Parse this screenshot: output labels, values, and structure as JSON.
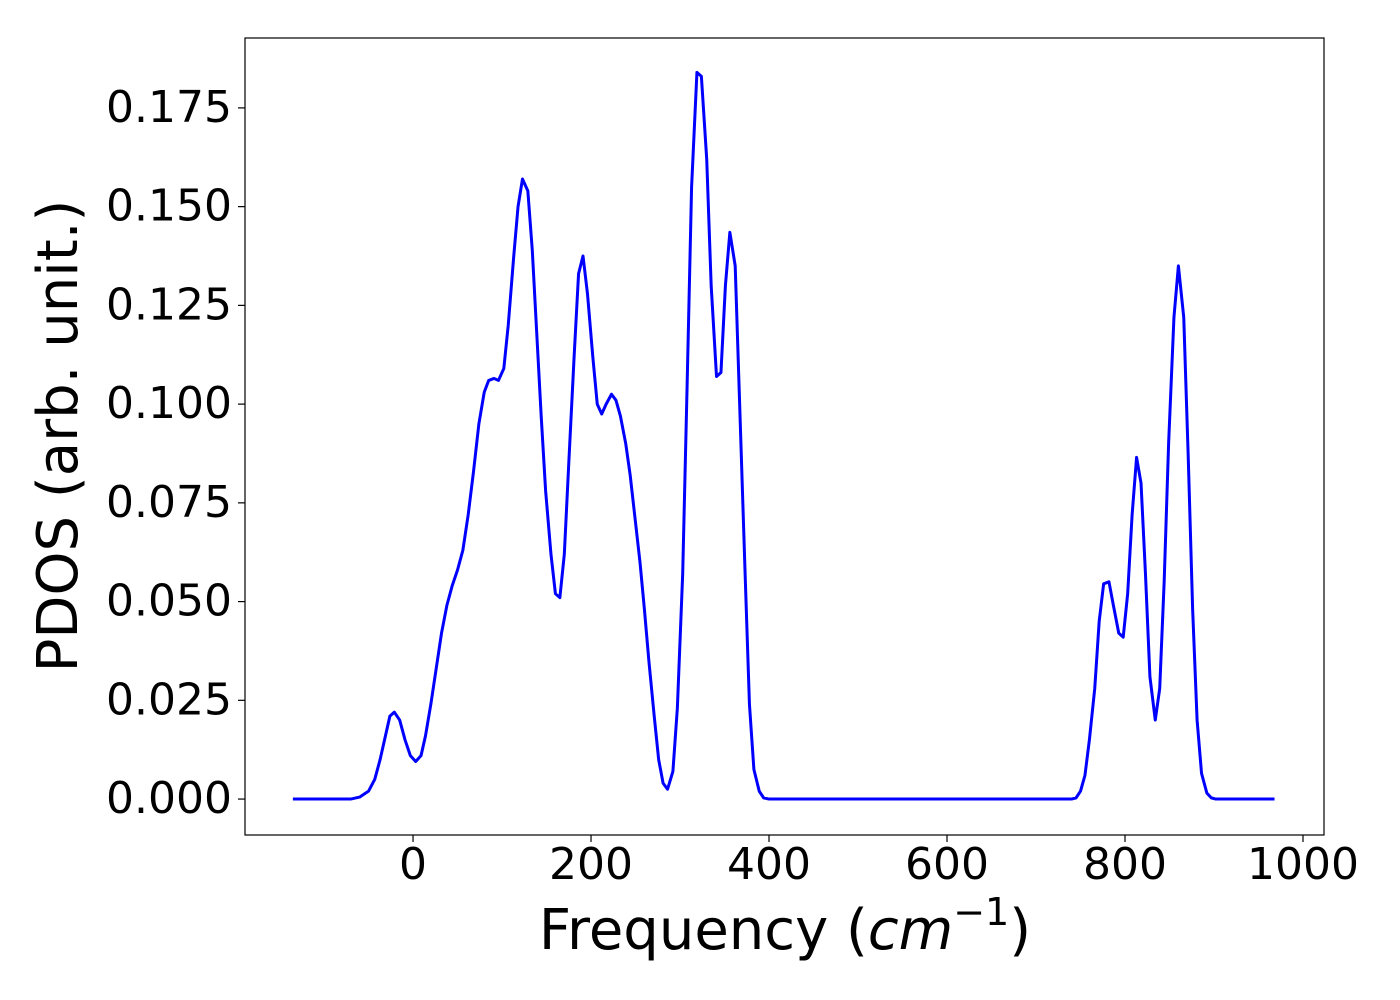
{
  "chart_data": {
    "type": "line",
    "x_label": {
      "text": "Frequency (",
      "unit": "cm",
      "exponent": "−1",
      "close": ")"
    },
    "y_label": "PDOS (arb. unit.)",
    "x": [
      -135,
      -70,
      -60,
      -50,
      -43,
      -37,
      -31,
      -26,
      -21,
      -15,
      -9,
      -3,
      3,
      9,
      14,
      20,
      26,
      32,
      38,
      44,
      50,
      56,
      62,
      68,
      74,
      80,
      85,
      91,
      96,
      102,
      107,
      113,
      118,
      123,
      129,
      134,
      139,
      144,
      149,
      155,
      160,
      165,
      170,
      175,
      181,
      186,
      191,
      196,
      202,
      207,
      212,
      217,
      223,
      228,
      233,
      239,
      244,
      249,
      255,
      260,
      265,
      271,
      276,
      281,
      286,
      292,
      297,
      303,
      308,
      313,
      319,
      324,
      330,
      335,
      341,
      346,
      351,
      356,
      362,
      367,
      373,
      378,
      383,
      389,
      394,
      400,
      740,
      745,
      750,
      755,
      760,
      766,
      771,
      776,
      782,
      787,
      793,
      798,
      803,
      808,
      813,
      818,
      823,
      828,
      834,
      839,
      844,
      849,
      855,
      860,
      866,
      871,
      876,
      881,
      886,
      892,
      897,
      902,
      968
    ],
    "series": [
      {
        "name": "PDOS",
        "color": "#0000ff",
        "values": [
          0,
          0,
          0.0005,
          0.002,
          0.005,
          0.01,
          0.016,
          0.021,
          0.022,
          0.02,
          0.015,
          0.011,
          0.0095,
          0.011,
          0.016,
          0.024,
          0.033,
          0.042,
          0.049,
          0.054,
          0.058,
          0.063,
          0.072,
          0.083,
          0.095,
          0.103,
          0.106,
          0.1065,
          0.106,
          0.109,
          0.12,
          0.137,
          0.15,
          0.157,
          0.154,
          0.139,
          0.118,
          0.097,
          0.078,
          0.062,
          0.052,
          0.051,
          0.062,
          0.085,
          0.112,
          0.133,
          0.1375,
          0.128,
          0.112,
          0.1,
          0.0975,
          0.1,
          0.1025,
          0.101,
          0.097,
          0.09,
          0.082,
          0.072,
          0.06,
          0.048,
          0.035,
          0.021,
          0.01,
          0.004,
          0.0025,
          0.007,
          0.023,
          0.057,
          0.105,
          0.155,
          0.184,
          0.183,
          0.162,
          0.13,
          0.107,
          0.108,
          0.13,
          0.1435,
          0.135,
          0.1,
          0.058,
          0.024,
          0.0075,
          0.002,
          0.0003,
          0,
          0,
          0.0003,
          0.002,
          0.006,
          0.015,
          0.028,
          0.045,
          0.0545,
          0.055,
          0.049,
          0.042,
          0.041,
          0.052,
          0.072,
          0.0865,
          0.08,
          0.057,
          0.031,
          0.02,
          0.028,
          0.055,
          0.09,
          0.122,
          0.135,
          0.122,
          0.087,
          0.048,
          0.02,
          0.0065,
          0.0015,
          0.0003,
          0,
          0
        ]
      }
    ],
    "xlim": [
      -188.8,
      1023.6
    ],
    "ylim": [
      -0.0091,
      0.1927
    ],
    "xticks": [
      0,
      200,
      400,
      600,
      800,
      1000
    ],
    "yticks": [
      {
        "value": 0,
        "label": "0.000"
      },
      {
        "value": 0.025,
        "label": "0.025"
      },
      {
        "value": 0.05,
        "label": "0.050"
      },
      {
        "value": 0.075,
        "label": "0.075"
      },
      {
        "value": 0.1,
        "label": "0.100"
      },
      {
        "value": 0.125,
        "label": "0.125"
      },
      {
        "value": 0.15,
        "label": "0.150"
      },
      {
        "value": 0.175,
        "label": "0.175"
      }
    ],
    "grid": false
  }
}
